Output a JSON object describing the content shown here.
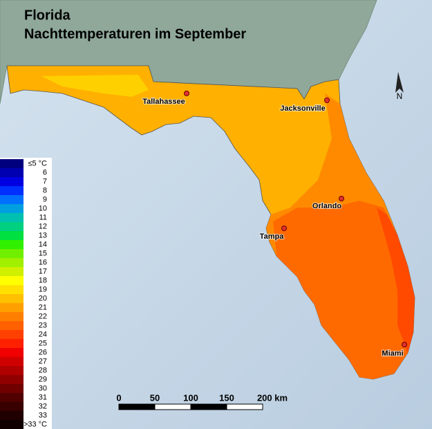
{
  "title": [
    "Florida",
    "Nachttemperaturen im September"
  ],
  "north": "N",
  "legend": [
    {
      "label": "≤5 °C",
      "color": "#00007f"
    },
    {
      "label": "6",
      "color": "#0000b0"
    },
    {
      "label": "7",
      "color": "#0000e0"
    },
    {
      "label": "8",
      "color": "#0030ff"
    },
    {
      "label": "9",
      "color": "#0070ff"
    },
    {
      "label": "10",
      "color": "#00a0e0"
    },
    {
      "label": "11",
      "color": "#00c0b0"
    },
    {
      "label": "12",
      "color": "#00d080"
    },
    {
      "label": "13",
      "color": "#00e040"
    },
    {
      "label": "14",
      "color": "#30f000"
    },
    {
      "label": "15",
      "color": "#70f000"
    },
    {
      "label": "16",
      "color": "#a0f000"
    },
    {
      "label": "17",
      "color": "#d0f000"
    },
    {
      "label": "18",
      "color": "#ffff00"
    },
    {
      "label": "19",
      "color": "#ffe000"
    },
    {
      "label": "20",
      "color": "#ffc000"
    },
    {
      "label": "21",
      "color": "#ffa000"
    },
    {
      "label": "22",
      "color": "#ff8000"
    },
    {
      "label": "23",
      "color": "#ff6000"
    },
    {
      "label": "24",
      "color": "#ff4000"
    },
    {
      "label": "25",
      "color": "#ff2000"
    },
    {
      "label": "26",
      "color": "#f00000"
    },
    {
      "label": "27",
      "color": "#d00000"
    },
    {
      "label": "28",
      "color": "#b00000"
    },
    {
      "label": "29",
      "color": "#900000"
    },
    {
      "label": "30",
      "color": "#700000"
    },
    {
      "label": "31",
      "color": "#500000"
    },
    {
      "label": "32",
      "color": "#380000"
    },
    {
      "label": "33",
      "color": "#200000"
    },
    {
      "label": ">33 °C",
      "color": "#100000"
    }
  ],
  "cities": [
    "Tallahassee",
    "Jacksonville",
    "Orlando",
    "Tampa",
    "Miami"
  ],
  "scale": [
    "0",
    "50",
    "100",
    "150",
    "200 km"
  ]
}
